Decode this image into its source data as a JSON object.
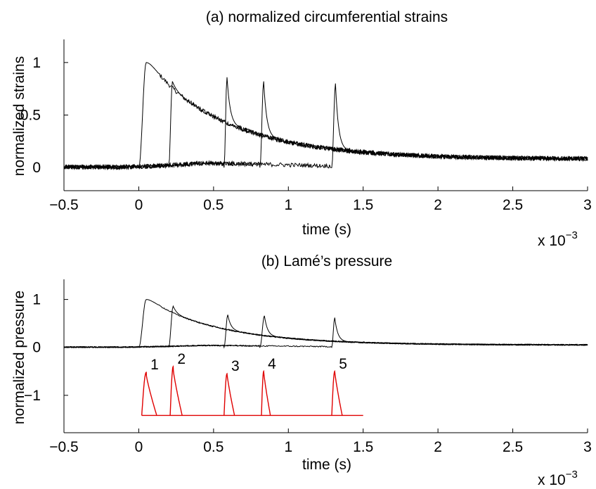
{
  "chart_data": [
    {
      "type": "line",
      "title": "(a) normalized circumferential strains",
      "xlabel": "time (s)",
      "ylabel": "normalized strains",
      "x_multiplier": "x 10",
      "x_multiplier_exp": "−3",
      "xlim": [
        -0.5,
        3
      ],
      "ylim": [
        -0.22,
        1.22
      ],
      "xticks": [
        "−0.5",
        "0",
        "0.5",
        "1",
        "1.5",
        "2",
        "2.5",
        "3"
      ],
      "yticks": [
        "0",
        "0.5",
        "1"
      ],
      "grid": false,
      "series": [
        {
          "onset": 0.0,
          "peak_t": 0.05,
          "peak": 1.0
        },
        {
          "onset": 0.2,
          "peak_t": 0.225,
          "peak": 0.82
        },
        {
          "onset": 0.57,
          "peak_t": 0.59,
          "peak": 0.86
        },
        {
          "onset": 0.81,
          "peak_t": 0.835,
          "peak": 0.82
        },
        {
          "onset": 1.29,
          "peak_t": 1.315,
          "peak": 0.8
        }
      ],
      "decay": {
        "t0": 0.05,
        "v0": 1.0,
        "tau": 0.55,
        "baseline": 0.08
      }
    },
    {
      "type": "line",
      "title": "(b) Lamé’s pressure",
      "xlabel": "time (s)",
      "ylabel": "normalized pressure",
      "x_multiplier": "x 10",
      "x_multiplier_exp": "−3",
      "xlim": [
        -0.5,
        3
      ],
      "ylim": [
        -1.78,
        1.42
      ],
      "xticks": [
        "−0.5",
        "0",
        "0.5",
        "1",
        "1.5",
        "2",
        "2.5",
        "3"
      ],
      "yticks": [
        "−1",
        "0",
        "1"
      ],
      "grid": false,
      "series": [
        {
          "onset": 0.0,
          "peak_t": 0.05,
          "peak": 1.0
        },
        {
          "onset": 0.2,
          "peak_t": 0.23,
          "peak": 0.86
        },
        {
          "onset": 0.57,
          "peak_t": 0.595,
          "peak": 0.68
        },
        {
          "onset": 0.81,
          "peak_t": 0.84,
          "peak": 0.66
        },
        {
          "onset": 1.29,
          "peak_t": 1.31,
          "peak": 0.62
        }
      ],
      "decay": {
        "t0": 0.05,
        "v0": 1.0,
        "tau": 0.5,
        "baseline": 0.05
      },
      "red_baseline": -1.42,
      "red_end": 1.5,
      "red_pulses": [
        {
          "label": "1",
          "onset": 0.02,
          "peak_t": 0.05,
          "peak": -0.52,
          "end": 0.12
        },
        {
          "label": "2",
          "onset": 0.21,
          "peak_t": 0.23,
          "peak": -0.4,
          "end": 0.29
        },
        {
          "label": "3",
          "onset": 0.57,
          "peak_t": 0.59,
          "peak": -0.55,
          "end": 0.64
        },
        {
          "label": "4",
          "onset": 0.82,
          "peak_t": 0.835,
          "peak": -0.5,
          "end": 0.88
        },
        {
          "label": "5",
          "onset": 1.29,
          "peak_t": 1.31,
          "peak": -0.5,
          "end": 1.36
        }
      ]
    }
  ]
}
